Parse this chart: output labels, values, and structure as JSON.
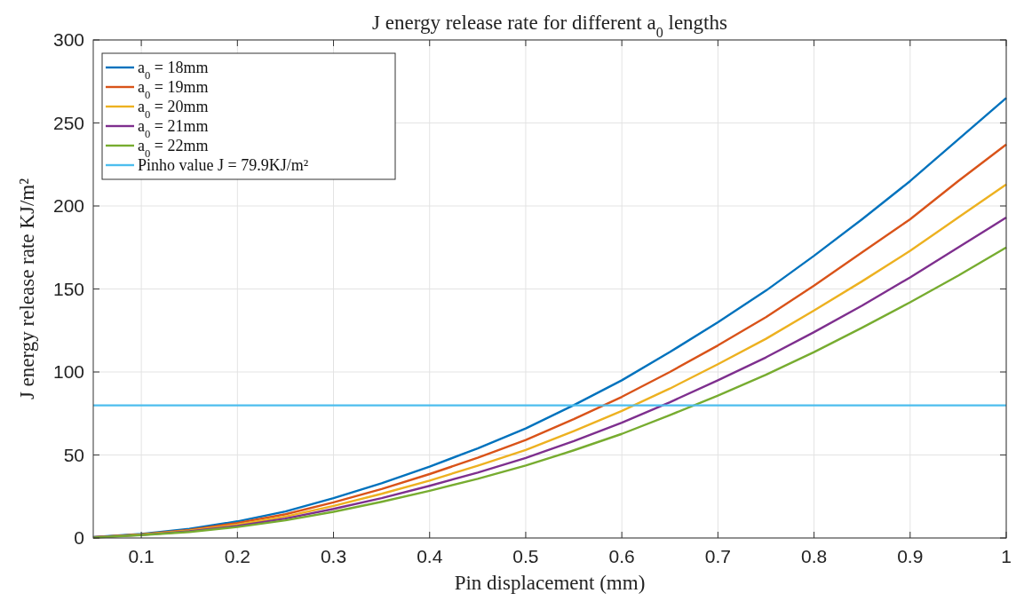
{
  "chart_data": {
    "type": "line",
    "title": "J energy release rate for different a$_{0}$ lengths",
    "xlabel": "Pin displacement (mm)",
    "ylabel": "J energy release rate KJ/m²",
    "x": [
      0.05,
      0.1,
      0.15,
      0.2,
      0.25,
      0.3,
      0.35,
      0.4,
      0.45,
      0.5,
      0.55,
      0.6,
      0.65,
      0.7,
      0.75,
      0.8,
      0.85,
      0.9,
      0.95,
      1.0
    ],
    "series": [
      {
        "name": "a$_{0}$ = 18mm",
        "color": "#0072bd",
        "values": [
          0.5,
          2.5,
          5.5,
          10,
          16,
          24,
          33,
          43,
          54,
          66,
          80,
          95,
          112,
          130,
          149,
          170,
          192,
          215,
          240,
          265
        ]
      },
      {
        "name": "a$_{0}$ = 19mm",
        "color": "#d95319",
        "values": [
          0.4,
          2.2,
          4.9,
          9,
          14.3,
          21.5,
          29.5,
          38.5,
          48.3,
          59,
          71.6,
          85,
          100,
          116,
          133,
          152,
          172,
          192,
          215,
          237
        ]
      },
      {
        "name": "a$_{0}$ = 20mm",
        "color": "#edb120",
        "values": [
          0.4,
          2,
          4.4,
          8,
          12.9,
          19.3,
          26.6,
          34.6,
          43.5,
          53,
          64.4,
          76.5,
          90,
          104.7,
          120,
          137,
          154.6,
          173,
          193,
          213
        ]
      },
      {
        "name": "a$_{0}$ = 21mm",
        "color": "#7e2f8e",
        "values": [
          0.4,
          1.8,
          4,
          7.3,
          11.7,
          17.5,
          24,
          31.4,
          39.4,
          48.2,
          58.4,
          69.4,
          81.8,
          95,
          108.8,
          124,
          140,
          157,
          175,
          193
        ]
      },
      {
        "name": "a$_{0}$ = 22mm",
        "color": "#77ac30",
        "values": [
          0.3,
          1.7,
          3.6,
          6.6,
          10.6,
          15.8,
          21.8,
          28.4,
          35.6,
          43.6,
          52.8,
          62.7,
          74,
          85.8,
          98.3,
          112,
          126.7,
          142,
          158,
          175
        ]
      }
    ],
    "ref_lines": [
      {
        "axis": "y",
        "value": 79.9,
        "label": "Pinho value J = 79.9KJ/m²",
        "color": "#4dbeee"
      }
    ],
    "xlim": [
      0.05,
      1
    ],
    "xticks": [
      0.1,
      0.2,
      0.3,
      0.4,
      0.5,
      0.6,
      0.7,
      0.8,
      0.9,
      1
    ],
    "ylim": [
      0,
      300
    ],
    "yticks": [
      0,
      50,
      100,
      150,
      200,
      250,
      300
    ],
    "grid": true,
    "legend": "top left",
    "line_style": "solid",
    "marker": "none"
  }
}
